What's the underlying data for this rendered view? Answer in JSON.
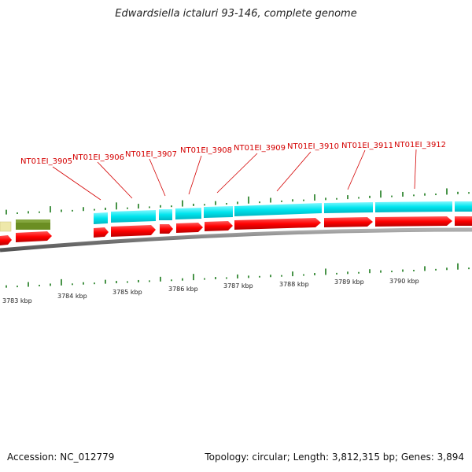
{
  "title": "Edwardsiella ictaluri 93-146, complete genome",
  "footer": {
    "accession": "Accession: NC_012779",
    "summary": "Topology: circular; Length: 3,812,315 bp; Genes: 3,894"
  },
  "kbp_labels": [
    "3783 kbp",
    "3784 kbp",
    "3785 kbp",
    "3786 kbp",
    "3787 kbp",
    "3788 kbp",
    "3789 kbp",
    "3790 kbp"
  ],
  "locus_labels": [
    "NT01EI_3905",
    "NT01EI_3906",
    "NT01EI_3907",
    "NT01EI_3908",
    "NT01EI_3909",
    "NT01EI_3910",
    "NT01EI_3911",
    "NT01EI_3912"
  ],
  "colors": {
    "forward_cds": "#ff0000",
    "cds_band": "#00e5ee",
    "other_feature_olive": "#6b8e23",
    "other_feature_pale": "#eee8aa",
    "backbone": "#808080",
    "gc_ticks": "#1a7a1a",
    "locus_label": "#d40000"
  }
}
